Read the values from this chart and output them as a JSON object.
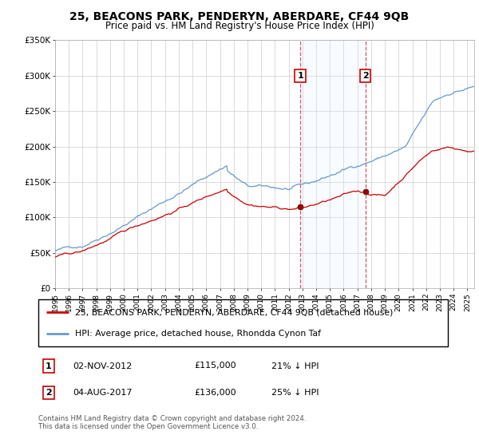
{
  "title": "25, BEACONS PARK, PENDERYN, ABERDARE, CF44 9QB",
  "subtitle": "Price paid vs. HM Land Registry's House Price Index (HPI)",
  "ylim": [
    0,
    350000
  ],
  "xlim_start": 1995.0,
  "xlim_end": 2025.5,
  "sale1_date": 2012.84,
  "sale1_price": 115000,
  "sale2_date": 2017.58,
  "sale2_price": 136000,
  "hpi_color": "#6699cc",
  "price_color": "#cc0000",
  "shade_color": "#ddeeff",
  "legend_line1": "25, BEACONS PARK, PENDERYN, ABERDARE, CF44 9QB (detached house)",
  "legend_line2": "HPI: Average price, detached house, Rhondda Cynon Taf",
  "table_row1": [
    "1",
    "02-NOV-2012",
    "£115,000",
    "21% ↓ HPI"
  ],
  "table_row2": [
    "2",
    "04-AUG-2017",
    "£136,000",
    "25% ↓ HPI"
  ],
  "footnote": "Contains HM Land Registry data © Crown copyright and database right 2024.\nThis data is licensed under the Open Government Licence v3.0."
}
